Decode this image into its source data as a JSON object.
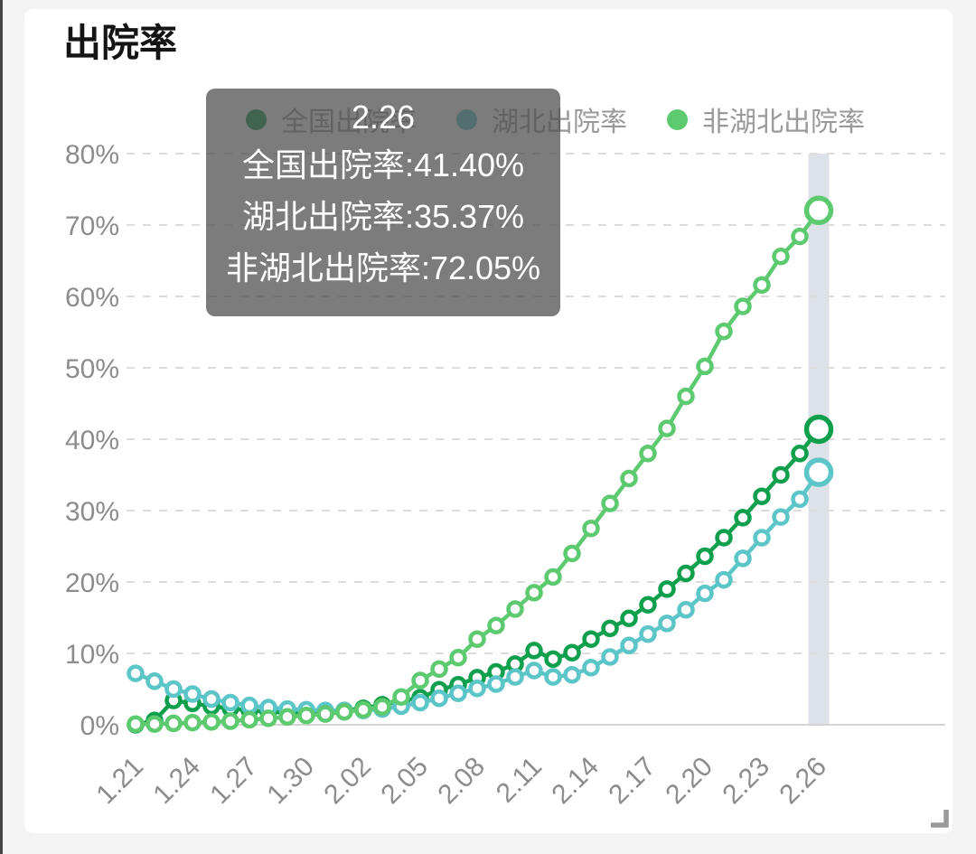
{
  "chart_data": {
    "type": "line",
    "title": "出院率",
    "categories": [
      "1.21",
      "1.22",
      "1.23",
      "1.24",
      "1.25",
      "1.26",
      "1.27",
      "1.28",
      "1.29",
      "1.30",
      "1.31",
      "2.01",
      "2.02",
      "2.03",
      "2.04",
      "2.05",
      "2.06",
      "2.07",
      "2.08",
      "2.09",
      "2.10",
      "2.11",
      "2.12",
      "2.13",
      "2.14",
      "2.15",
      "2.16",
      "2.17",
      "2.18",
      "2.19",
      "2.20",
      "2.21",
      "2.22",
      "2.23",
      "2.24",
      "2.25",
      "2.26"
    ],
    "xtick_labels": [
      "1.21",
      "1.24",
      "1.27",
      "1.30",
      "2.02",
      "2.05",
      "2.08",
      "2.11",
      "2.14",
      "2.17",
      "2.20",
      "2.23",
      "2.26"
    ],
    "xlabel": "",
    "ylabel": "",
    "ylim": [
      0,
      80
    ],
    "ytick_labels": [
      "0%",
      "10%",
      "20%",
      "30%",
      "40%",
      "50%",
      "60%",
      "70%",
      "80%"
    ],
    "grid": "horizontal-dashed",
    "legend_position": "top",
    "unit": "%",
    "series": [
      {
        "key": "national",
        "name": "全国出院率",
        "color": "#10a04d",
        "values": [
          0.0,
          0.6,
          3.4,
          3.0,
          2.6,
          2.3,
          2.0,
          1.8,
          1.7,
          1.7,
          1.8,
          2.0,
          2.3,
          2.8,
          3.3,
          3.8,
          4.9,
          5.6,
          6.6,
          7.4,
          8.5,
          10.4,
          9.2,
          10.1,
          12.0,
          13.5,
          14.9,
          16.8,
          19.0,
          21.2,
          23.6,
          26.2,
          29.0,
          32.0,
          35.0,
          38.0,
          41.4
        ]
      },
      {
        "key": "hubei",
        "name": "湖北出院率",
        "color": "#5bc5c7",
        "values": [
          7.2,
          6.1,
          5.0,
          4.3,
          3.6,
          3.1,
          2.7,
          2.4,
          2.2,
          2.1,
          2.0,
          2.0,
          2.0,
          2.2,
          2.6,
          3.1,
          3.7,
          4.4,
          5.1,
          5.7,
          6.7,
          7.6,
          6.7,
          7.0,
          8.0,
          9.5,
          11.1,
          12.7,
          14.2,
          16.1,
          18.4,
          20.3,
          23.3,
          26.2,
          29.1,
          31.6,
          35.37
        ]
      },
      {
        "key": "non-hubei",
        "name": "非湖北出院率",
        "color": "#5dca70",
        "values": [
          0.1,
          0.1,
          0.2,
          0.3,
          0.4,
          0.5,
          0.7,
          0.9,
          1.1,
          1.3,
          1.5,
          1.8,
          2.1,
          2.5,
          3.9,
          6.2,
          7.8,
          9.4,
          12.0,
          13.9,
          16.2,
          18.5,
          20.7,
          24.0,
          27.5,
          31.0,
          34.5,
          38.0,
          41.5,
          46.0,
          50.2,
          55.1,
          58.6,
          61.6,
          65.6,
          68.4,
          72.05
        ]
      }
    ],
    "highlighted_category": "2.26",
    "tooltip": {
      "date": "2.26",
      "lines": [
        "全国出院率:41.40%",
        "湖北出院率:35.37%",
        "非湖北出院率:72.05%"
      ]
    },
    "colors": {
      "highlight_band": "#dce2e7",
      "gridline": "#dcdcdc",
      "axis_line": "#d4d4d4",
      "axis_text": "#8c8c8c",
      "legend_text": "#999999",
      "tooltip_bg": "rgba(80,80,80,0.75)"
    },
    "icons": {
      "corner": "resize-corner-icon"
    }
  }
}
